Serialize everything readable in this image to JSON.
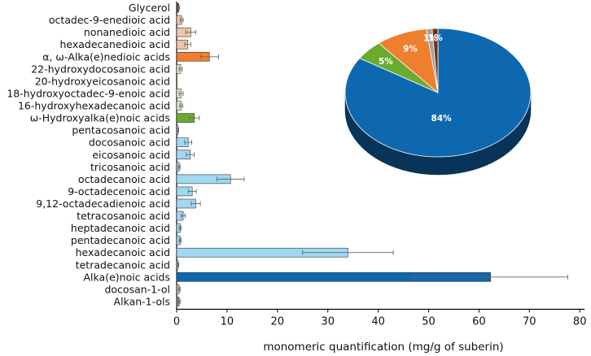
{
  "chart_data": [
    {
      "type": "bar",
      "orientation": "horizontal",
      "xlabel": "monomeric quantification (mg/g of suberin)",
      "xlim": [
        0,
        80
      ],
      "xticks": [
        0,
        10,
        20,
        30,
        40,
        50,
        60,
        70,
        80
      ],
      "error_bars": true,
      "categories": [
        "Glycerol",
        "octadec-9-enedioic acid",
        "nonanedioic acid",
        "hexadecanedioic acid",
        "α, ω-Alka(e)nedioic acids",
        "22-hydroxydocosanoic acid",
        "20-hydroxyeicosanoic acid",
        "18-hydroxyoctadec-9-enoic acid",
        "16-hydroxyhexadecanoic acid",
        "ω-Hydroxyalka(e)noic acids",
        "pentacosanoic acid",
        "docosanoic acid",
        "eicosanoic acid",
        "tricosanoic acid",
        "octadecanoic acid",
        "9-octadecenoic acid",
        "9,12-octadecadienoic acid",
        "tetracosanoic acid",
        "heptadecanoic acid",
        "pentadecanoic acid",
        "hexadecanoic acid",
        "tetradecanoic acid",
        "Alka(e)noic acids",
        "docosan-1-ol",
        "Alkan-1-ols"
      ],
      "values": [
        0.4,
        1.0,
        2.8,
        2.2,
        6.5,
        0.8,
        0.0,
        0.9,
        0.9,
        3.5,
        0.3,
        2.3,
        2.7,
        0.5,
        10.7,
        3.1,
        3.8,
        1.3,
        0.7,
        0.7,
        34.0,
        0.3,
        62.3,
        0.5,
        0.5
      ],
      "errors": [
        0.2,
        0.3,
        1.0,
        0.6,
        1.8,
        0.3,
        0.0,
        0.4,
        0.3,
        1.0,
        0.1,
        0.7,
        0.8,
        0.2,
        2.7,
        0.8,
        0.9,
        0.4,
        0.2,
        0.2,
        9.0,
        0.1,
        15.3,
        0.2,
        0.2
      ],
      "colors": [
        "#6b3318",
        "#f2c3a8",
        "#f2c3a8",
        "#f2c3a8",
        "#ef7e2e",
        "#d9eecb",
        "#d9eecb",
        "#d9eecb",
        "#d9eecb",
        "#6aab2e",
        "#9fd8f3",
        "#9fd8f3",
        "#9fd8f3",
        "#9fd8f3",
        "#9fd8f3",
        "#9fd8f3",
        "#9fd8f3",
        "#9fd8f3",
        "#9fd8f3",
        "#9fd8f3",
        "#9fd8f3",
        "#9fd8f3",
        "#0e68b0",
        "#c4c4c4",
        "#8c8c8c"
      ]
    },
    {
      "type": "pie",
      "style": "3d",
      "slices": [
        {
          "label": "84%",
          "value": 84,
          "color": "#0e68b0"
        },
        {
          "label": "5%",
          "value": 5,
          "color": "#6aab2e"
        },
        {
          "label": "9%",
          "value": 9,
          "color": "#ef7e2e"
        },
        {
          "label": "1%",
          "value": 1,
          "color": "#a0a0a0"
        },
        {
          "label": "1%",
          "value": 1,
          "color": "#6b3318"
        }
      ]
    }
  ]
}
